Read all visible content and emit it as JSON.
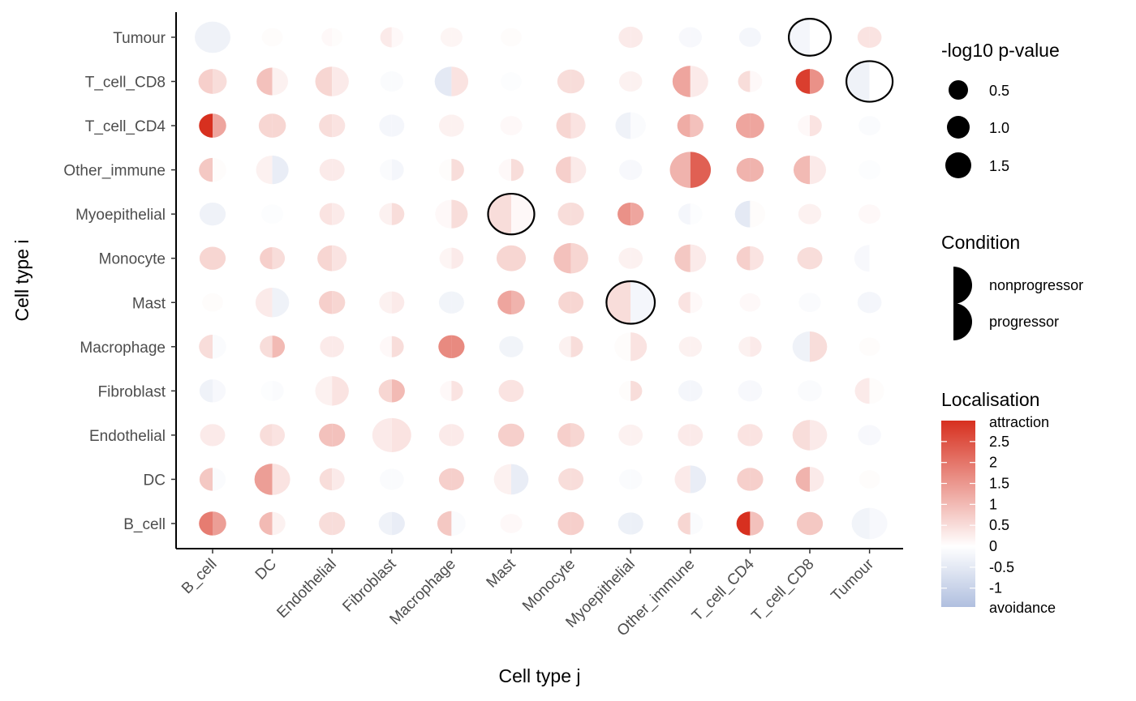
{
  "chart_data": {
    "type": "split-dot-heatmap",
    "title": "",
    "xlabel": "Cell type j",
    "ylabel": "Cell type i",
    "x_categories": [
      "B_cell",
      "DC",
      "Endothelial",
      "Fibroblast",
      "Macrophage",
      "Mast",
      "Monocyte",
      "Myoepithelial",
      "Other_immune",
      "T_cell_CD4",
      "T_cell_CD8",
      "Tumour"
    ],
    "y_categories": [
      "B_cell",
      "DC",
      "Endothelial",
      "Fibroblast",
      "Macrophage",
      "Mast",
      "Monocyte",
      "Myoepithelial",
      "Other_immune",
      "T_cell_CD4",
      "T_cell_CD8",
      "Tumour"
    ],
    "halves": [
      "nonprogressor",
      "progressor"
    ],
    "cells": [
      {
        "i": "Tumour",
        "j": "B_cell",
        "L": -0.3,
        "P": -0.3,
        "s": 1.0
      },
      {
        "i": "Tumour",
        "j": "DC",
        "L": 0.05,
        "P": 0.05,
        "s": 0.3
      },
      {
        "i": "Tumour",
        "j": "Endothelial",
        "L": 0.1,
        "P": 0.05,
        "s": 0.3
      },
      {
        "i": "Tumour",
        "j": "Fibroblast",
        "L": 0.3,
        "P": 0.1,
        "s": 0.4
      },
      {
        "i": "Tumour",
        "j": "Macrophage",
        "L": 0.15,
        "P": 0.15,
        "s": 0.35
      },
      {
        "i": "Tumour",
        "j": "Mast",
        "L": 0.05,
        "P": 0.05,
        "s": 0.3
      },
      {
        "i": "Tumour",
        "j": "Monocyte",
        "L": 0.0,
        "P": 0.0,
        "s": 0.25
      },
      {
        "i": "Tumour",
        "j": "Myoepithelial",
        "L": 0.3,
        "P": 0.3,
        "s": 0.45
      },
      {
        "i": "Tumour",
        "j": "Other_immune",
        "L": -0.15,
        "P": -0.15,
        "s": 0.4
      },
      {
        "i": "Tumour",
        "j": "T_cell_CD4",
        "L": -0.2,
        "P": -0.2,
        "s": 0.35
      },
      {
        "i": "Tumour",
        "j": "T_cell_CD8",
        "L": -0.2,
        "P": 0.0,
        "s": 1.3,
        "outlined": true
      },
      {
        "i": "Tumour",
        "j": "Tumour",
        "L": 0.4,
        "P": 0.4,
        "s": 0.45
      },
      {
        "i": "T_cell_CD8",
        "j": "B_cell",
        "L": 0.7,
        "P": 0.5,
        "s": 0.65
      },
      {
        "i": "T_cell_CD8",
        "j": "DC",
        "L": 0.9,
        "P": 0.2,
        "s": 0.8
      },
      {
        "i": "T_cell_CD8",
        "j": "Endothelial",
        "L": 0.6,
        "P": 0.3,
        "s": 0.9
      },
      {
        "i": "T_cell_CD8",
        "j": "Fibroblast",
        "L": -0.1,
        "P": -0.1,
        "s": 0.4
      },
      {
        "i": "T_cell_CD8",
        "j": "Macrophage",
        "L": -0.5,
        "P": 0.4,
        "s": 0.9
      },
      {
        "i": "T_cell_CD8",
        "j": "Mast",
        "L": -0.05,
        "P": -0.05,
        "s": 0.3
      },
      {
        "i": "T_cell_CD8",
        "j": "Monocyte",
        "L": 0.5,
        "P": 0.5,
        "s": 0.6
      },
      {
        "i": "T_cell_CD8",
        "j": "Myoepithelial",
        "L": 0.2,
        "P": 0.2,
        "s": 0.4
      },
      {
        "i": "T_cell_CD8",
        "j": "Other_immune",
        "L": 1.3,
        "P": 0.3,
        "s": 1.0
      },
      {
        "i": "T_cell_CD8",
        "j": "T_cell_CD4",
        "L": 0.5,
        "P": 0.1,
        "s": 0.45
      },
      {
        "i": "T_cell_CD8",
        "j": "T_cell_CD8",
        "L": 2.8,
        "P": 1.6,
        "s": 0.65
      },
      {
        "i": "T_cell_CD8",
        "j": "Tumour",
        "L": -0.3,
        "P": 0.0,
        "s": 1.5,
        "outlined": true
      },
      {
        "i": "T_cell_CD4",
        "j": "B_cell",
        "L": 3.0,
        "P": 1.3,
        "s": 0.6
      },
      {
        "i": "T_cell_CD4",
        "j": "DC",
        "L": 0.6,
        "P": 0.6,
        "s": 0.6
      },
      {
        "i": "T_cell_CD4",
        "j": "Endothelial",
        "L": 0.5,
        "P": 0.4,
        "s": 0.55
      },
      {
        "i": "T_cell_CD4",
        "j": "Fibroblast",
        "L": -0.2,
        "P": -0.2,
        "s": 0.5
      },
      {
        "i": "T_cell_CD4",
        "j": "Macrophage",
        "L": 0.2,
        "P": 0.2,
        "s": 0.5
      },
      {
        "i": "T_cell_CD4",
        "j": "Mast",
        "L": 0.1,
        "P": 0.1,
        "s": 0.35
      },
      {
        "i": "T_cell_CD4",
        "j": "Monocyte",
        "L": 0.6,
        "P": 0.4,
        "s": 0.7
      },
      {
        "i": "T_cell_CD4",
        "j": "Myoepithelial",
        "L": -0.3,
        "P": -0.1,
        "s": 0.75
      },
      {
        "i": "T_cell_CD4",
        "j": "Other_immune",
        "L": 1.2,
        "P": 0.9,
        "s": 0.55
      },
      {
        "i": "T_cell_CD4",
        "j": "T_cell_CD4",
        "L": 1.3,
        "P": 1.3,
        "s": 0.65
      },
      {
        "i": "T_cell_CD4",
        "j": "T_cell_CD8",
        "L": 0.1,
        "P": 0.4,
        "s": 0.45
      },
      {
        "i": "T_cell_CD4",
        "j": "Tumour",
        "L": -0.1,
        "P": -0.1,
        "s": 0.35
      },
      {
        "i": "Other_immune",
        "j": "B_cell",
        "L": 0.8,
        "P": 0.05,
        "s": 0.6
      },
      {
        "i": "Other_immune",
        "j": "DC",
        "L": 0.2,
        "P": -0.4,
        "s": 0.85
      },
      {
        "i": "Other_immune",
        "j": "Endothelial",
        "L": 0.3,
        "P": 0.3,
        "s": 0.5
      },
      {
        "i": "Other_immune",
        "j": "Fibroblast",
        "L": -0.1,
        "P": -0.2,
        "s": 0.45
      },
      {
        "i": "Other_immune",
        "j": "Macrophage",
        "L": 0.05,
        "P": 0.5,
        "s": 0.5
      },
      {
        "i": "Other_immune",
        "j": "Mast",
        "L": 0.1,
        "P": 0.5,
        "s": 0.5
      },
      {
        "i": "Other_immune",
        "j": "Monocyte",
        "L": 0.7,
        "P": 0.3,
        "s": 0.75
      },
      {
        "i": "Other_immune",
        "j": "Myoepithelial",
        "L": -0.15,
        "P": -0.15,
        "s": 0.4
      },
      {
        "i": "Other_immune",
        "j": "Other_immune",
        "L": 1.1,
        "P": 2.3,
        "s": 1.25
      },
      {
        "i": "Other_immune",
        "j": "T_cell_CD4",
        "L": 1.1,
        "P": 1.1,
        "s": 0.6
      },
      {
        "i": "Other_immune",
        "j": "T_cell_CD8",
        "L": 1.0,
        "P": 0.3,
        "s": 0.85
      },
      {
        "i": "Other_immune",
        "j": "Tumour",
        "L": -0.05,
        "P": -0.05,
        "s": 0.35
      },
      {
        "i": "Myoepithelial",
        "j": "B_cell",
        "L": -0.3,
        "P": -0.3,
        "s": 0.55
      },
      {
        "i": "Myoepithelial",
        "j": "DC",
        "L": -0.05,
        "P": -0.05,
        "s": 0.35
      },
      {
        "i": "Myoepithelial",
        "j": "Endothelial",
        "L": 0.4,
        "P": 0.3,
        "s": 0.5
      },
      {
        "i": "Myoepithelial",
        "j": "Fibroblast",
        "L": 0.2,
        "P": 0.5,
        "s": 0.5
      },
      {
        "i": "Myoepithelial",
        "j": "Macrophage",
        "L": 0.1,
        "P": 0.5,
        "s": 0.85
      },
      {
        "i": "Myoepithelial",
        "j": "Mast",
        "L": 0.5,
        "P": 0.1,
        "s": 1.5,
        "outlined": true
      },
      {
        "i": "Myoepithelial",
        "j": "Monocyte",
        "L": 0.5,
        "P": 0.5,
        "s": 0.55
      },
      {
        "i": "Myoepithelial",
        "j": "Myoepithelial",
        "L": 1.6,
        "P": 1.3,
        "s": 0.55
      },
      {
        "i": "Myoepithelial",
        "j": "Other_immune",
        "L": -0.2,
        "P": -0.05,
        "s": 0.45
      },
      {
        "i": "Myoepithelial",
        "j": "T_cell_CD4",
        "L": -0.5,
        "P": 0.05,
        "s": 0.75
      },
      {
        "i": "Myoepithelial",
        "j": "T_cell_CD8",
        "L": 0.2,
        "P": 0.2,
        "s": 0.4
      },
      {
        "i": "Myoepithelial",
        "j": "Tumour",
        "L": 0.1,
        "P": 0.1,
        "s": 0.35
      },
      {
        "i": "Monocyte",
        "j": "B_cell",
        "L": 0.6,
        "P": 0.6,
        "s": 0.55
      },
      {
        "i": "Monocyte",
        "j": "DC",
        "L": 0.7,
        "P": 0.5,
        "s": 0.5
      },
      {
        "i": "Monocyte",
        "j": "Endothelial",
        "L": 0.6,
        "P": 0.4,
        "s": 0.7
      },
      {
        "i": "Monocyte",
        "j": "Fibroblast",
        "L": 0.0,
        "P": 0.0,
        "s": 0.3
      },
      {
        "i": "Monocyte",
        "j": "Macrophage",
        "L": 0.15,
        "P": 0.3,
        "s": 0.45
      },
      {
        "i": "Monocyte",
        "j": "Mast",
        "L": 0.6,
        "P": 0.6,
        "s": 0.7
      },
      {
        "i": "Monocyte",
        "j": "Monocyte",
        "L": 0.9,
        "P": 0.6,
        "s": 0.95
      },
      {
        "i": "Monocyte",
        "j": "Myoepithelial",
        "L": 0.2,
        "P": 0.2,
        "s": 0.45
      },
      {
        "i": "Monocyte",
        "j": "Other_immune",
        "L": 0.8,
        "P": 0.3,
        "s": 0.8
      },
      {
        "i": "Monocyte",
        "j": "T_cell_CD4",
        "L": 0.7,
        "P": 0.4,
        "s": 0.6
      },
      {
        "i": "Monocyte",
        "j": "T_cell_CD8",
        "L": 0.5,
        "P": 0.5,
        "s": 0.5
      },
      {
        "i": "Monocyte",
        "j": "Tumour",
        "L": -0.15,
        "P": 0.0,
        "s": 0.75
      },
      {
        "i": "Mast",
        "j": "B_cell",
        "L": 0.05,
        "P": 0.05,
        "s": 0.3
      },
      {
        "i": "Mast",
        "j": "DC",
        "L": 0.3,
        "P": -0.3,
        "s": 0.9
      },
      {
        "i": "Mast",
        "j": "Endothelial",
        "L": 0.7,
        "P": 0.6,
        "s": 0.55
      },
      {
        "i": "Mast",
        "j": "Fibroblast",
        "L": 0.2,
        "P": 0.3,
        "s": 0.5
      },
      {
        "i": "Mast",
        "j": "Macrophage",
        "L": -0.25,
        "P": -0.25,
        "s": 0.5
      },
      {
        "i": "Mast",
        "j": "Mast",
        "L": 1.3,
        "P": 1.1,
        "s": 0.6
      },
      {
        "i": "Mast",
        "j": "Monocyte",
        "L": 0.6,
        "P": 0.6,
        "s": 0.5
      },
      {
        "i": "Mast",
        "j": "Myoepithelial",
        "L": 0.5,
        "P": -0.2,
        "s": 1.6,
        "outlined": true
      },
      {
        "i": "Mast",
        "j": "Other_immune",
        "L": 0.4,
        "P": 0.1,
        "s": 0.45
      },
      {
        "i": "Mast",
        "j": "T_cell_CD4",
        "L": 0.1,
        "P": 0.1,
        "s": 0.3
      },
      {
        "i": "Mast",
        "j": "T_cell_CD8",
        "L": -0.1,
        "P": -0.1,
        "s": 0.35
      },
      {
        "i": "Mast",
        "j": "Tumour",
        "L": -0.2,
        "P": -0.2,
        "s": 0.45
      },
      {
        "i": "Macrophage",
        "j": "B_cell",
        "L": 0.5,
        "P": -0.1,
        "s": 0.6
      },
      {
        "i": "Macrophage",
        "j": "DC",
        "L": 0.5,
        "P": 1.0,
        "s": 0.5
      },
      {
        "i": "Macrophage",
        "j": "Endothelial",
        "L": 0.3,
        "P": 0.3,
        "s": 0.45
      },
      {
        "i": "Macrophage",
        "j": "Fibroblast",
        "L": 0.1,
        "P": 0.5,
        "s": 0.45
      },
      {
        "i": "Macrophage",
        "j": "Macrophage",
        "L": 1.7,
        "P": 1.7,
        "s": 0.55
      },
      {
        "i": "Macrophage",
        "j": "Mast",
        "L": -0.25,
        "P": -0.25,
        "s": 0.45
      },
      {
        "i": "Macrophage",
        "j": "Monocyte",
        "L": 0.2,
        "P": 0.5,
        "s": 0.45
      },
      {
        "i": "Macrophage",
        "j": "Myoepithelial",
        "L": 0.05,
        "P": 0.4,
        "s": 0.85
      },
      {
        "i": "Macrophage",
        "j": "Other_immune",
        "L": 0.2,
        "P": 0.2,
        "s": 0.4
      },
      {
        "i": "Macrophage",
        "j": "T_cell_CD4",
        "L": 0.2,
        "P": 0.3,
        "s": 0.4
      },
      {
        "i": "Macrophage",
        "j": "T_cell_CD8",
        "L": -0.3,
        "P": 0.5,
        "s": 0.95
      },
      {
        "i": "Macrophage",
        "j": "Tumour",
        "L": 0.05,
        "P": 0.05,
        "s": 0.3
      },
      {
        "i": "Fibroblast",
        "j": "B_cell",
        "L": -0.3,
        "P": -0.15,
        "s": 0.55
      },
      {
        "i": "Fibroblast",
        "j": "DC",
        "L": -0.05,
        "P": -0.1,
        "s": 0.4
      },
      {
        "i": "Fibroblast",
        "j": "Endothelial",
        "L": 0.2,
        "P": 0.4,
        "s": 0.9
      },
      {
        "i": "Fibroblast",
        "j": "Fibroblast",
        "L": 0.6,
        "P": 1.0,
        "s": 0.55
      },
      {
        "i": "Fibroblast",
        "j": "Macrophage",
        "L": 0.1,
        "P": 0.4,
        "s": 0.4
      },
      {
        "i": "Fibroblast",
        "j": "Mast",
        "L": 0.4,
        "P": 0.4,
        "s": 0.5
      },
      {
        "i": "Fibroblast",
        "j": "Monocyte",
        "L": 0.0,
        "P": 0.0,
        "s": 0.25
      },
      {
        "i": "Fibroblast",
        "j": "Myoepithelial",
        "L": 0.05,
        "P": 0.5,
        "s": 0.4
      },
      {
        "i": "Fibroblast",
        "j": "Other_immune",
        "L": -0.2,
        "P": -0.2,
        "s": 0.45
      },
      {
        "i": "Fibroblast",
        "j": "T_cell_CD4",
        "L": -0.15,
        "P": -0.15,
        "s": 0.45
      },
      {
        "i": "Fibroblast",
        "j": "T_cell_CD8",
        "L": -0.1,
        "P": -0.1,
        "s": 0.45
      },
      {
        "i": "Fibroblast",
        "j": "Tumour",
        "L": 0.3,
        "P": 0.05,
        "s": 0.7
      },
      {
        "i": "Endothelial",
        "j": "B_cell",
        "L": 0.3,
        "P": 0.3,
        "s": 0.5
      },
      {
        "i": "Endothelial",
        "j": "DC",
        "L": 0.5,
        "P": 0.4,
        "s": 0.5
      },
      {
        "i": "Endothelial",
        "j": "Endothelial",
        "L": 0.9,
        "P": 0.9,
        "s": 0.55
      },
      {
        "i": "Endothelial",
        "j": "Fibroblast",
        "L": 0.3,
        "P": 0.4,
        "s": 1.15
      },
      {
        "i": "Endothelial",
        "j": "Macrophage",
        "L": 0.3,
        "P": 0.3,
        "s": 0.5
      },
      {
        "i": "Endothelial",
        "j": "Mast",
        "L": 0.7,
        "P": 0.7,
        "s": 0.55
      },
      {
        "i": "Endothelial",
        "j": "Monocyte",
        "L": 0.7,
        "P": 0.6,
        "s": 0.6
      },
      {
        "i": "Endothelial",
        "j": "Myoepithelial",
        "L": 0.2,
        "P": 0.2,
        "s": 0.45
      },
      {
        "i": "Endothelial",
        "j": "Other_immune",
        "L": 0.3,
        "P": 0.3,
        "s": 0.5
      },
      {
        "i": "Endothelial",
        "j": "T_cell_CD4",
        "L": 0.4,
        "P": 0.4,
        "s": 0.5
      },
      {
        "i": "Endothelial",
        "j": "T_cell_CD8",
        "L": 0.5,
        "P": 0.3,
        "s": 0.95
      },
      {
        "i": "Endothelial",
        "j": "Tumour",
        "L": -0.15,
        "P": -0.15,
        "s": 0.4
      },
      {
        "i": "DC",
        "j": "B_cell",
        "L": 0.8,
        "P": -0.1,
        "s": 0.55
      },
      {
        "i": "DC",
        "j": "DC",
        "L": 1.4,
        "P": 0.4,
        "s": 1.0
      },
      {
        "i": "DC",
        "j": "Endothelial",
        "L": 0.5,
        "P": 0.3,
        "s": 0.5
      },
      {
        "i": "DC",
        "j": "Fibroblast",
        "L": -0.1,
        "P": -0.1,
        "s": 0.45
      },
      {
        "i": "DC",
        "j": "Macrophage",
        "L": 0.7,
        "P": 0.7,
        "s": 0.5
      },
      {
        "i": "DC",
        "j": "Mast",
        "L": 0.2,
        "P": -0.4,
        "s": 0.95
      },
      {
        "i": "DC",
        "j": "Monocyte",
        "L": 0.5,
        "P": 0.5,
        "s": 0.5
      },
      {
        "i": "DC",
        "j": "Myoepithelial",
        "L": -0.1,
        "P": -0.1,
        "s": 0.4
      },
      {
        "i": "DC",
        "j": "Other_immune",
        "L": 0.3,
        "P": -0.4,
        "s": 0.8
      },
      {
        "i": "DC",
        "j": "T_cell_CD4",
        "L": 0.7,
        "P": 0.7,
        "s": 0.55
      },
      {
        "i": "DC",
        "j": "T_cell_CD8",
        "L": 1.1,
        "P": 0.3,
        "s": 0.65
      },
      {
        "i": "DC",
        "j": "Tumour",
        "L": 0.05,
        "P": 0.05,
        "s": 0.3
      },
      {
        "i": "B_cell",
        "j": "B_cell",
        "L": 1.9,
        "P": 1.4,
        "s": 0.6
      },
      {
        "i": "B_cell",
        "j": "DC",
        "L": 1.0,
        "P": 0.2,
        "s": 0.55
      },
      {
        "i": "B_cell",
        "j": "Endothelial",
        "L": 0.5,
        "P": 0.5,
        "s": 0.55
      },
      {
        "i": "B_cell",
        "j": "Fibroblast",
        "L": -0.3,
        "P": -0.4,
        "s": 0.55
      },
      {
        "i": "B_cell",
        "j": "Macrophage",
        "L": 0.8,
        "P": -0.1,
        "s": 0.65
      },
      {
        "i": "B_cell",
        "j": "Mast",
        "L": 0.1,
        "P": 0.1,
        "s": 0.35
      },
      {
        "i": "B_cell",
        "j": "Monocyte",
        "L": 0.7,
        "P": 0.7,
        "s": 0.55
      },
      {
        "i": "B_cell",
        "j": "Myoepithelial",
        "L": -0.35,
        "P": -0.35,
        "s": 0.5
      },
      {
        "i": "B_cell",
        "j": "Other_immune",
        "L": 0.6,
        "P": -0.1,
        "s": 0.5
      },
      {
        "i": "B_cell",
        "j": "T_cell_CD4",
        "L": 3.0,
        "P": 0.9,
        "s": 0.6
      },
      {
        "i": "B_cell",
        "j": "T_cell_CD8",
        "L": 0.8,
        "P": 0.8,
        "s": 0.55
      },
      {
        "i": "B_cell",
        "j": "Tumour",
        "L": -0.25,
        "P": -0.15,
        "s": 1.0
      }
    ],
    "legend_size": {
      "title": "-log10 p-value",
      "entries": [
        {
          "label": "0.5",
          "value": 0.5
        },
        {
          "label": "1.0",
          "value": 1.0
        },
        {
          "label": "1.5",
          "value": 1.5
        }
      ]
    },
    "legend_condition": {
      "title": "Condition",
      "entries": [
        "nonprogressor",
        "progressor"
      ]
    },
    "legend_color": {
      "title": "Localisation",
      "top_label": "attraction",
      "bottom_label": "avoidance",
      "ticks": [
        {
          "label": "2.5",
          "value": 2.5
        },
        {
          "label": "2",
          "value": 2
        },
        {
          "label": "1.5",
          "value": 1.5
        },
        {
          "label": "1",
          "value": 1
        },
        {
          "label": "0.5",
          "value": 0.5
        },
        {
          "label": "0",
          "value": 0
        },
        {
          "label": "-0.5",
          "value": -0.5
        },
        {
          "label": "-1",
          "value": -1
        }
      ],
      "range": [
        -1.45,
        3.0
      ],
      "colors": {
        "high": "#D7301F",
        "mid": "#FFFFFF",
        "low": "#B0BFDF"
      }
    }
  }
}
